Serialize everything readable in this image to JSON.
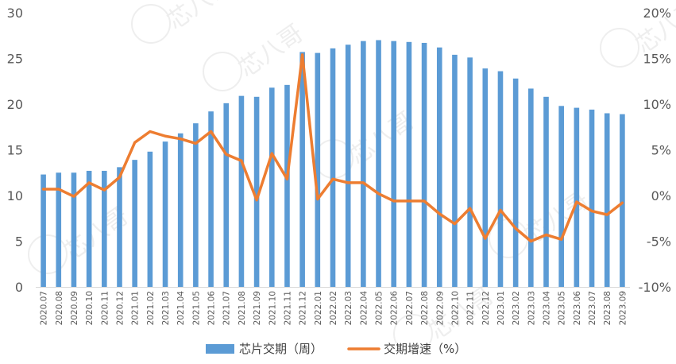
{
  "chart_data": {
    "type": "bar",
    "categories": [
      "2020.07",
      "2020.08",
      "2020.09",
      "2020.10",
      "2020.11",
      "2020.12",
      "2021.01",
      "2021.02",
      "2021.03",
      "2021.04",
      "2021.05",
      "2021.06",
      "2021.07",
      "2021.08",
      "2021.09",
      "2021.10",
      "2021.11",
      "2021.12",
      "2022.01",
      "2022.02",
      "2022.03",
      "2022.04",
      "2022.05",
      "2022.06",
      "2022.07",
      "2022.08",
      "2022.09",
      "2022.10",
      "2022.11",
      "2022.12",
      "2023.01",
      "2023.02",
      "2023.03",
      "2023.04",
      "2023.05",
      "2023.06",
      "2023.07",
      "2023.08",
      "2023.09"
    ],
    "series": [
      {
        "name": "芯片交期（周）",
        "type": "bar",
        "axis": "left",
        "color": "#5B9BD5",
        "values": [
          12.3,
          12.5,
          12.5,
          12.7,
          12.7,
          13.1,
          13.9,
          14.8,
          15.9,
          16.8,
          17.9,
          19.2,
          20.1,
          20.9,
          20.8,
          21.8,
          22.1,
          25.7,
          25.6,
          26.1,
          26.5,
          26.9,
          27.0,
          26.9,
          26.8,
          26.7,
          26.2,
          25.4,
          25.1,
          23.9,
          23.6,
          22.8,
          21.7,
          20.8,
          19.8,
          19.6,
          19.4,
          19.0,
          18.9
        ]
      },
      {
        "name": "交期增速（%）",
        "type": "line",
        "axis": "right",
        "color": "#ED7D31",
        "values": [
          0.7,
          0.7,
          -0.1,
          1.4,
          0.6,
          2.0,
          5.8,
          7.0,
          6.5,
          6.2,
          5.7,
          7.0,
          4.5,
          3.8,
          -0.5,
          4.6,
          1.8,
          15.4,
          -0.4,
          1.8,
          1.4,
          1.4,
          0.2,
          -0.6,
          -0.6,
          -0.6,
          -2.0,
          -3.1,
          -1.4,
          -4.7,
          -1.6,
          -3.6,
          -5.0,
          -4.3,
          -4.8,
          -0.7,
          -1.7,
          -2.1,
          -0.8
        ]
      }
    ],
    "yaxis_left": {
      "min": 0,
      "max": 30,
      "step": 5,
      "tick_labels": [
        "0",
        "5",
        "10",
        "15",
        "20",
        "25",
        "30"
      ]
    },
    "yaxis_right": {
      "min": -10,
      "max": 20,
      "step": 5,
      "tick_labels": [
        "-10%",
        "-5%",
        "0%",
        "5%",
        "10%",
        "15%",
        "20%"
      ]
    },
    "grid": false,
    "legend_position": "bottom",
    "watermark_text": "芯八哥"
  }
}
